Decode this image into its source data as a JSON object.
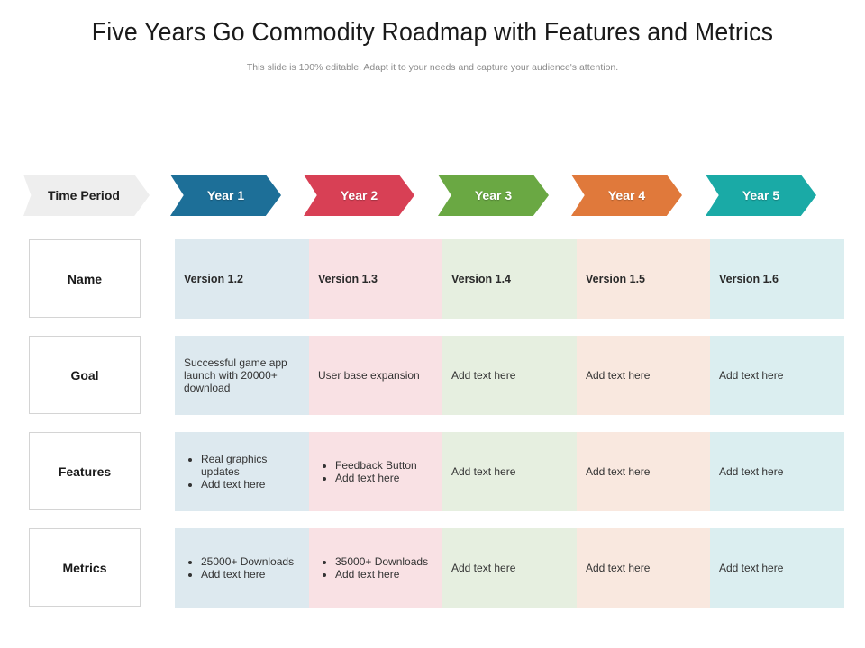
{
  "title": "Five Years Go Commodity Roadmap with Features and Metrics",
  "subtitle": "This slide is 100% editable. Adapt it to your needs and capture your audience's attention.",
  "header": {
    "time_period": "Time Period",
    "years": [
      {
        "label": "Year 1",
        "color": "#1d6f98"
      },
      {
        "label": "Year 2",
        "color": "#d84055"
      },
      {
        "label": "Year 3",
        "color": "#6aa843"
      },
      {
        "label": "Year 4",
        "color": "#e0793b"
      },
      {
        "label": "Year 5",
        "color": "#1aaaa6"
      }
    ]
  },
  "rows": [
    {
      "label": "Name",
      "cells": [
        "Version 1.2",
        "Version 1.3",
        "Version 1.4",
        "Version 1.5",
        "Version 1.6"
      ]
    },
    {
      "label": "Goal",
      "cells": [
        "Successful game app launch with 20000+ download",
        "User base expansion",
        "Add text here",
        "Add text here",
        "Add text here"
      ]
    },
    {
      "label": "Features",
      "cells": [
        [
          "Real graphics updates",
          "Add text here"
        ],
        [
          "Feedback Button",
          "Add text here"
        ],
        "Add text here",
        "Add text here",
        "Add text here"
      ]
    },
    {
      "label": "Metrics",
      "cells": [
        [
          "25000+ Downloads",
          "Add text here"
        ],
        [
          "35000+ Downloads",
          "Add text here"
        ],
        "Add text here",
        "Add text here",
        "Add text here"
      ]
    }
  ]
}
